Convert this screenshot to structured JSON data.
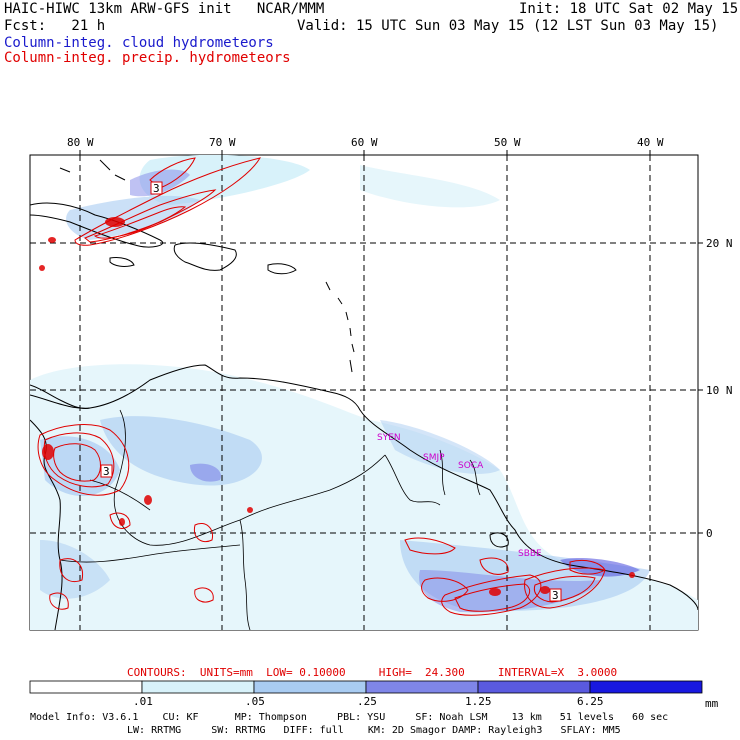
{
  "header": {
    "title": "HAIC-HIWC 13km ARW-GFS init   NCAR/MMM",
    "init": "Init: 18 UTC Sat 02 May 15",
    "fcst": "Fcst:   21 h",
    "valid": "Valid: 15 UTC Sun 03 May 15 (12 LST Sun 03 May 15)",
    "field1": "Column-integ. cloud hydrometeors",
    "field2": "Column-integ. precip. hydrometeors",
    "field1_color": "#1a1acc",
    "field2_color": "#e00000"
  },
  "map": {
    "lon_labels": [
      "80 W",
      "70 W",
      "60 W",
      "50 W",
      "40 W"
    ],
    "lat_labels": [
      "20 N",
      "10 N",
      "0"
    ],
    "stations": [
      "SYEN",
      "SMJP",
      "SOCA",
      "SBBE"
    ],
    "contour_labels": [
      "3",
      "3",
      "3"
    ],
    "contour_color": "#e00000"
  },
  "contours_line": {
    "contours": "CONTOURS:",
    "units": "UNITS=mm",
    "low": "LOW= 0.10000",
    "high": "HIGH=  24.300",
    "interval": "INTERVAL=X  3.0000"
  },
  "colorbar": {
    "ticks": [
      ".01",
      ".05",
      ".25",
      "1.25",
      "6.25"
    ],
    "unit": "mm",
    "colors": [
      "#ffffff",
      "#d8f2fa",
      "#a9ccf2",
      "#7f86e8",
      "#5a5adf",
      "#1818e0"
    ]
  },
  "model_info": {
    "line1": "Model Info: V3.6.1    CU: KF      MP: Thompson     PBL: YSU     SF: Noah LSM    13 km   51 levels   60 sec",
    "line2": "LW: RRTMG     SW: RRTMG   DIFF: full    KM: 2D Smagor DAMP: Rayleigh3   SFLAY: MM5"
  }
}
